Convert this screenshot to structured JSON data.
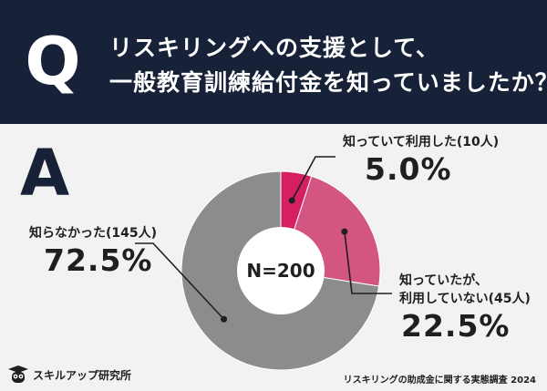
{
  "header": {
    "q_letter": "Q",
    "question_lines": [
      "リスキリングへの支援として、",
      "一般教育訓練給付金を知っていましたか？"
    ]
  },
  "answer_letter": "A",
  "chart_data": {
    "type": "pie",
    "center_label": "N=200",
    "slices": [
      {
        "label": "知っていて利用した(10人)",
        "value": 5.0,
        "pct_text": "5.0%",
        "color": "#d61e62"
      },
      {
        "label_lines": [
          "知っていたが、",
          "利用していない(45人)"
        ],
        "value": 22.5,
        "pct_text": "22.5%",
        "color": "#d35582"
      },
      {
        "label": "知らなかった(145人)",
        "value": 72.5,
        "pct_text": "72.5%",
        "color": "#8c8c8c"
      }
    ]
  },
  "footer": {
    "brand": "スキルアップ研究所",
    "source": "リスキリングの助成金に関する実態調査 2024"
  },
  "colors": {
    "navy": "#172238",
    "background": "#f2f2f2"
  }
}
